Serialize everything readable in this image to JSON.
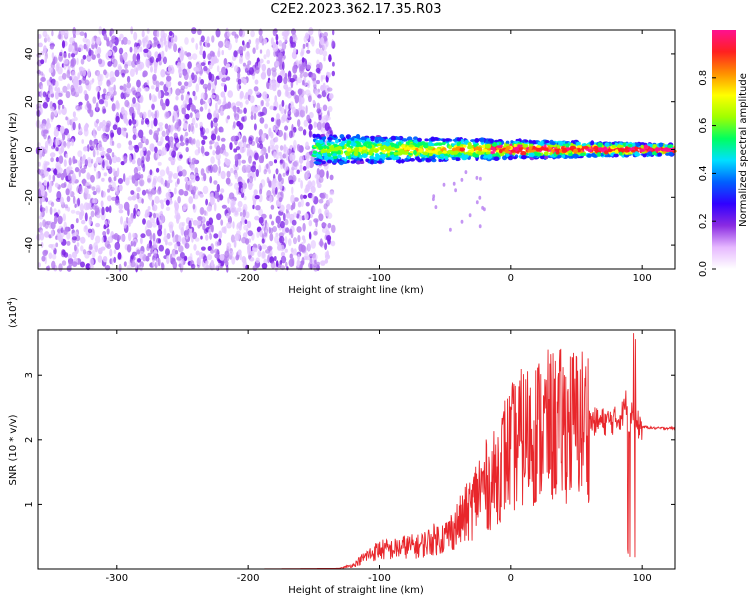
{
  "title": "C2E2.2023.362.17.35.R03",
  "chart_data": [
    {
      "type": "heatmap",
      "xlabel": "Height of straight line (km)",
      "ylabel": "Frequency (Hz)",
      "xlim": [
        -360,
        125
      ],
      "ylim": [
        -50,
        50
      ],
      "xticks": [
        -300,
        -200,
        -100,
        0,
        100
      ],
      "yticks": [
        -40,
        -20,
        0,
        20,
        40
      ],
      "colorbar": {
        "label": "Normalized spectral amplitude",
        "range": [
          0,
          1
        ],
        "ticks": [
          0.0,
          0.2,
          0.4,
          0.6,
          0.8
        ],
        "colormap": [
          "#ffffff",
          "#e6b8ff",
          "#8a2be2",
          "#3000ff",
          "#0060ff",
          "#00e0ff",
          "#00ff60",
          "#a0ff00",
          "#ffff00",
          "#ff9000",
          "#ff2020",
          "#ff1090"
        ]
      },
      "regions": [
        {
          "name": "noise",
          "x_range": [
            -360,
            -135
          ],
          "freq_range": [
            -50,
            50
          ],
          "amplitude_range": [
            0.0,
            0.15
          ]
        },
        {
          "name": "signal",
          "x_range": [
            -150,
            125
          ],
          "center_freq": 0,
          "half_width_hz": [
            6,
            2
          ],
          "amplitude_range": [
            0.2,
            1.0
          ]
        }
      ],
      "grid": false
    },
    {
      "type": "line",
      "xlabel": "Height of straight line (km)",
      "ylabel": "SNR (10 * v/v)",
      "y_multiplier": "(x10^4)",
      "xlim": [
        -360,
        125
      ],
      "ylim": [
        0,
        3.7
      ],
      "xticks": [
        -300,
        -200,
        -100,
        0,
        100
      ],
      "yticks": [
        1,
        2,
        3
      ],
      "series": [
        {
          "color": "#e8262b",
          "x": [
            -360,
            -300,
            -200,
            -130,
            -120,
            -110,
            -100,
            -90,
            -80,
            -70,
            -60,
            -50,
            -40,
            -30,
            -25,
            -20,
            -15,
            -10,
            -5,
            0,
            5,
            10,
            15,
            20,
            30,
            40,
            50,
            60,
            70,
            80,
            85,
            88,
            90,
            92,
            95,
            100,
            110,
            125
          ],
          "y": [
            0.0,
            0.0,
            0.0,
            0.01,
            0.06,
            0.2,
            0.3,
            0.3,
            0.35,
            0.35,
            0.45,
            0.5,
            0.7,
            0.95,
            1.2,
            1.3,
            1.3,
            1.5,
            1.75,
            1.85,
            1.95,
            2.05,
            2.1,
            2.15,
            2.2,
            2.22,
            2.25,
            2.28,
            2.28,
            2.3,
            2.4,
            2.6,
            2.2,
            2.45,
            2.25,
            2.2,
            2.18,
            2.18
          ]
        }
      ],
      "grid": false
    }
  ]
}
